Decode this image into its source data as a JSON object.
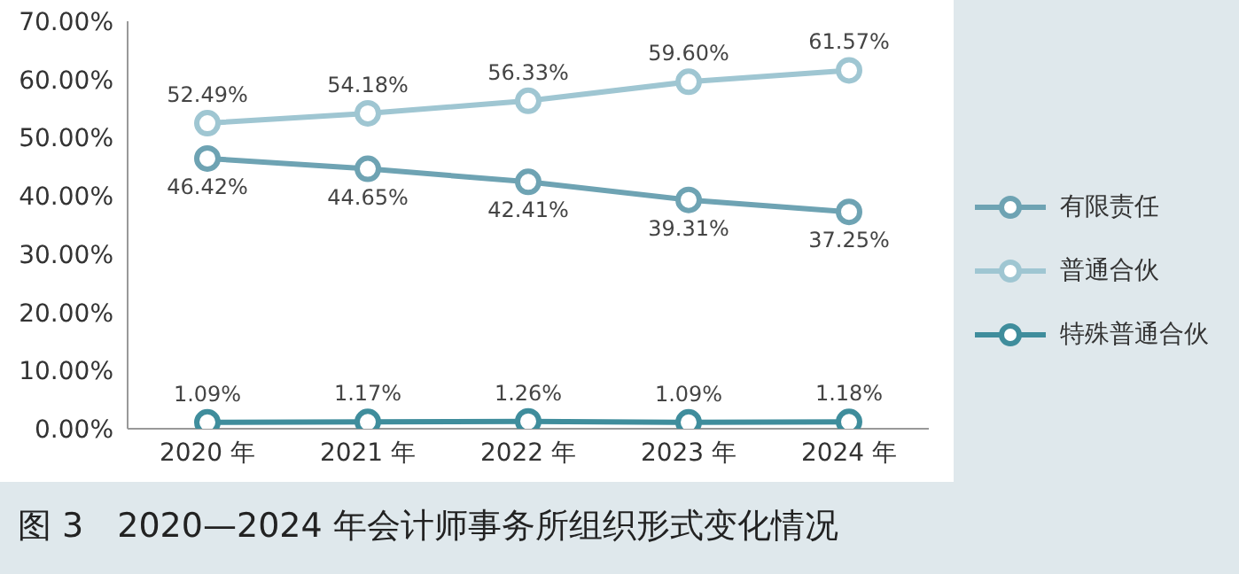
{
  "chart_data": {
    "type": "line",
    "title": "图 3　2020—2024 年会计师事务所组织形式变化情况",
    "categories": [
      "2020 年",
      "2021 年",
      "2022 年",
      "2023 年",
      "2024 年"
    ],
    "series": [
      {
        "name": "有限责任",
        "color": "#6ea3b3",
        "values": [
          46.42,
          44.65,
          42.41,
          39.31,
          37.25
        ],
        "value_labels": [
          "46.42%",
          "44.65%",
          "42.41%",
          "39.31%",
          "37.25%"
        ]
      },
      {
        "name": "普通合伙",
        "color": "#9fc6d2",
        "values": [
          52.49,
          54.18,
          56.33,
          59.6,
          61.57
        ],
        "value_labels": [
          "52.49%",
          "54.18%",
          "56.33%",
          "59.60%",
          "61.57%"
        ]
      },
      {
        "name": "特殊普通合伙",
        "color": "#3f8d9c",
        "values": [
          1.09,
          1.17,
          1.26,
          1.09,
          1.18
        ],
        "value_labels": [
          "1.09%",
          "1.17%",
          "1.26%",
          "1.09%",
          "1.18%"
        ]
      }
    ],
    "ylim": [
      0,
      70
    ],
    "yticks": [
      {
        "value": 0,
        "label": "0.00%"
      },
      {
        "value": 10,
        "label": "10.00%"
      },
      {
        "value": 20,
        "label": "20.00%"
      },
      {
        "value": 30,
        "label": "30.00%"
      },
      {
        "value": 40,
        "label": "40.00%"
      },
      {
        "value": 50,
        "label": "50.00%"
      },
      {
        "value": 60,
        "label": "60.00%"
      },
      {
        "value": 70,
        "label": "70.00%"
      }
    ],
    "grid": false,
    "legend": "right",
    "marker": "circle",
    "line_style": "solid"
  }
}
